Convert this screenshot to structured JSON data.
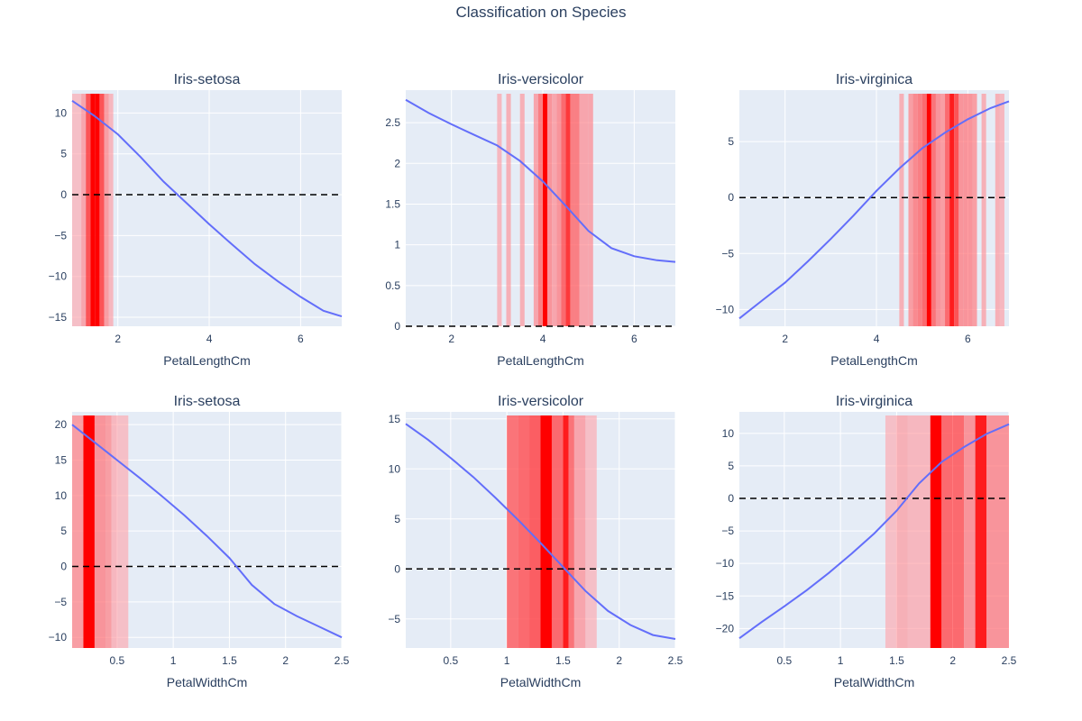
{
  "title": "Classification on Species",
  "colors": {
    "plot_bg": "#e5ecf6",
    "grid": "#ffffff",
    "line": "#636efa",
    "zero_line": "#000000",
    "band_strong": "#ff0000",
    "band_light": "#ffc0c8",
    "text": "#2a3f5f"
  },
  "chart_data": [
    {
      "type": "line",
      "title": "Iris-setosa",
      "xlabel": "PetalLengthCm",
      "xlim": [
        1.0,
        6.9
      ],
      "ylim": [
        -16.1,
        12.8
      ],
      "xticks": [
        2,
        4,
        6
      ],
      "yticks": [
        -15,
        -10,
        -5,
        0,
        5,
        10
      ],
      "x": [
        1.0,
        1.5,
        2.0,
        2.5,
        3.0,
        3.5,
        4.0,
        4.5,
        5.0,
        5.5,
        6.0,
        6.5,
        6.9
      ],
      "y": [
        11.5,
        9.6,
        7.4,
        4.6,
        1.6,
        -1.0,
        -3.6,
        -6.1,
        -8.5,
        -10.6,
        -12.5,
        -14.2,
        -14.9
      ],
      "bands": [
        [
          1.0,
          1.2,
          0.15
        ],
        [
          1.2,
          1.3,
          0.3
        ],
        [
          1.3,
          1.4,
          0.7
        ],
        [
          1.4,
          1.5,
          1.0
        ],
        [
          1.5,
          1.6,
          1.0
        ],
        [
          1.6,
          1.7,
          0.7
        ],
        [
          1.7,
          1.8,
          0.35
        ],
        [
          1.8,
          1.9,
          0.2
        ]
      ]
    },
    {
      "type": "line",
      "title": "Iris-versicolor",
      "xlabel": "PetalLengthCm",
      "xlim": [
        1.0,
        6.9
      ],
      "ylim": [
        0,
        2.9
      ],
      "xticks": [
        2,
        4,
        6
      ],
      "yticks": [
        0,
        0.5,
        1,
        1.5,
        2,
        2.5
      ],
      "x": [
        1.0,
        1.5,
        2.0,
        2.5,
        3.0,
        3.5,
        4.0,
        4.5,
        5.0,
        5.5,
        6.0,
        6.5,
        6.9
      ],
      "y": [
        2.78,
        2.62,
        2.48,
        2.35,
        2.22,
        2.03,
        1.78,
        1.48,
        1.17,
        0.96,
        0.86,
        0.81,
        0.79
      ],
      "bands": [
        [
          3.0,
          3.1,
          0.2
        ],
        [
          3.2,
          3.3,
          0.25
        ],
        [
          3.5,
          3.6,
          0.25
        ],
        [
          3.8,
          3.9,
          0.3
        ],
        [
          3.9,
          4.0,
          0.5
        ],
        [
          4.0,
          4.1,
          1.0
        ],
        [
          4.1,
          4.2,
          0.4
        ],
        [
          4.2,
          4.3,
          0.3
        ],
        [
          4.3,
          4.4,
          0.4
        ],
        [
          4.4,
          4.5,
          0.6
        ],
        [
          4.5,
          4.6,
          0.8
        ],
        [
          4.6,
          4.7,
          0.5
        ],
        [
          4.7,
          4.8,
          0.5
        ],
        [
          4.8,
          5.0,
          0.3
        ],
        [
          5.0,
          5.1,
          0.3
        ]
      ]
    },
    {
      "type": "line",
      "title": "Iris-virginica",
      "xlabel": "PetalLengthCm",
      "xlim": [
        1.0,
        6.9
      ],
      "ylim": [
        -11.5,
        9.6
      ],
      "xticks": [
        2,
        4,
        6
      ],
      "yticks": [
        -10,
        -5,
        0,
        5
      ],
      "x": [
        1.0,
        1.5,
        2.0,
        2.5,
        3.0,
        3.5,
        4.0,
        4.5,
        5.0,
        5.5,
        6.0,
        6.5,
        6.9
      ],
      "y": [
        -10.8,
        -9.2,
        -7.6,
        -5.7,
        -3.7,
        -1.6,
        0.6,
        2.6,
        4.4,
        5.8,
        7.0,
        8.0,
        8.6
      ],
      "bands": [
        [
          4.5,
          4.6,
          0.25
        ],
        [
          4.7,
          4.8,
          0.35
        ],
        [
          4.8,
          4.9,
          0.45
        ],
        [
          4.9,
          5.0,
          0.5
        ],
        [
          5.0,
          5.1,
          0.6
        ],
        [
          5.1,
          5.2,
          1.0
        ],
        [
          5.2,
          5.3,
          0.55
        ],
        [
          5.3,
          5.4,
          0.4
        ],
        [
          5.4,
          5.5,
          0.35
        ],
        [
          5.5,
          5.6,
          0.6
        ],
        [
          5.6,
          5.7,
          0.9
        ],
        [
          5.7,
          5.8,
          0.7
        ],
        [
          5.8,
          5.9,
          0.4
        ],
        [
          5.9,
          6.0,
          0.4
        ],
        [
          6.0,
          6.1,
          0.4
        ],
        [
          6.1,
          6.2,
          0.35
        ],
        [
          6.3,
          6.4,
          0.25
        ],
        [
          6.6,
          6.7,
          0.25
        ],
        [
          6.7,
          6.8,
          0.2
        ]
      ]
    },
    {
      "type": "line",
      "title": "Iris-setosa",
      "xlabel": "PetalWidthCm",
      "xlim": [
        0.1,
        2.5
      ],
      "ylim": [
        -11.5,
        21.8
      ],
      "xticks": [
        0.5,
        1,
        1.5,
        2,
        2.5
      ],
      "yticks": [
        -10,
        -5,
        0,
        5,
        10,
        15,
        20
      ],
      "x": [
        0.1,
        0.3,
        0.5,
        0.7,
        0.9,
        1.1,
        1.3,
        1.5,
        1.7,
        1.9,
        2.1,
        2.3,
        2.5
      ],
      "y": [
        20.0,
        17.5,
        15.0,
        12.5,
        9.9,
        7.2,
        4.3,
        1.2,
        -2.6,
        -5.3,
        -7.0,
        -8.5,
        -10.0
      ],
      "bands": [
        [
          0.1,
          0.2,
          0.35
        ],
        [
          0.2,
          0.3,
          1.0
        ],
        [
          0.3,
          0.4,
          0.4
        ],
        [
          0.4,
          0.45,
          0.35
        ],
        [
          0.45,
          0.5,
          0.2
        ],
        [
          0.5,
          0.6,
          0.15
        ]
      ]
    },
    {
      "type": "line",
      "title": "Iris-versicolor",
      "xlabel": "PetalWidthCm",
      "xlim": [
        0.1,
        2.5
      ],
      "ylim": [
        -7.9,
        15.7
      ],
      "xticks": [
        0.5,
        1,
        1.5,
        2,
        2.5
      ],
      "yticks": [
        -5,
        0,
        5,
        10,
        15
      ],
      "x": [
        0.1,
        0.3,
        0.5,
        0.7,
        0.9,
        1.1,
        1.3,
        1.5,
        1.7,
        1.9,
        2.1,
        2.3,
        2.5
      ],
      "y": [
        14.5,
        12.9,
        11.1,
        9.2,
        7.1,
        4.9,
        2.6,
        0.2,
        -2.2,
        -4.2,
        -5.6,
        -6.6,
        -7.0
      ],
      "bands": [
        [
          1.0,
          1.1,
          0.55
        ],
        [
          1.1,
          1.2,
          0.6
        ],
        [
          1.2,
          1.3,
          0.65
        ],
        [
          1.3,
          1.4,
          1.0
        ],
        [
          1.4,
          1.5,
          0.6
        ],
        [
          1.5,
          1.55,
          0.9
        ],
        [
          1.55,
          1.6,
          0.55
        ],
        [
          1.6,
          1.7,
          0.3
        ],
        [
          1.7,
          1.8,
          0.15
        ]
      ]
    },
    {
      "type": "line",
      "title": "Iris-virginica",
      "xlabel": "PetalWidthCm",
      "xlim": [
        0.1,
        2.5
      ],
      "ylim": [
        -23,
        13.3
      ],
      "xticks": [
        0.5,
        1,
        1.5,
        2,
        2.5
      ],
      "yticks": [
        -20,
        -15,
        -10,
        -5,
        0,
        5,
        10
      ],
      "x": [
        0.1,
        0.3,
        0.5,
        0.7,
        0.9,
        1.1,
        1.3,
        1.5,
        1.7,
        1.9,
        2.1,
        2.3,
        2.5
      ],
      "y": [
        -21.5,
        -19.0,
        -16.6,
        -14.1,
        -11.4,
        -8.5,
        -5.4,
        -1.9,
        2.3,
        5.6,
        7.9,
        9.9,
        11.4
      ],
      "bands": [
        [
          1.4,
          1.5,
          0.15
        ],
        [
          1.5,
          1.6,
          0.25
        ],
        [
          1.6,
          1.8,
          0.2
        ],
        [
          1.8,
          1.9,
          1.0
        ],
        [
          1.9,
          2.0,
          0.6
        ],
        [
          2.0,
          2.1,
          0.6
        ],
        [
          2.1,
          2.2,
          0.4
        ],
        [
          2.2,
          2.3,
          0.9
        ],
        [
          2.3,
          2.5,
          0.4
        ]
      ]
    }
  ]
}
